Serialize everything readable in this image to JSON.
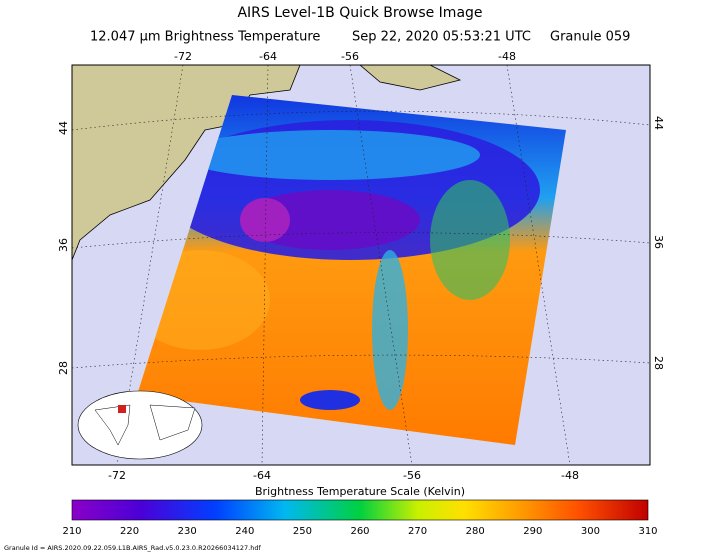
{
  "title": "AIRS Level-1B Quick Browse Image",
  "subtitle": {
    "channel": "12.047 μm Brightness Temperature",
    "time": "Sep 22, 2020 05:53:21 UTC",
    "granule": "Granule 059"
  },
  "map": {
    "top_lon_labels": [
      "-72",
      "-64",
      "-56",
      "-48"
    ],
    "bottom_lon_labels": [
      "-72",
      "-64",
      "-56",
      "-48"
    ],
    "left_lat_labels": [
      "44",
      "36",
      "28"
    ],
    "right_lat_labels": [
      "44",
      "36",
      "28"
    ]
  },
  "colorbar": {
    "title": "Brightness Temperature Scale (Kelvin)",
    "ticks": [
      "210",
      "220",
      "230",
      "240",
      "250",
      "260",
      "270",
      "280",
      "290",
      "300",
      "310"
    ]
  },
  "footer": "Granule Id = AIRS.2020.09.22.059.L1B.AIRS_Rad.v5.0.23.0.R20266034127.hdf"
}
